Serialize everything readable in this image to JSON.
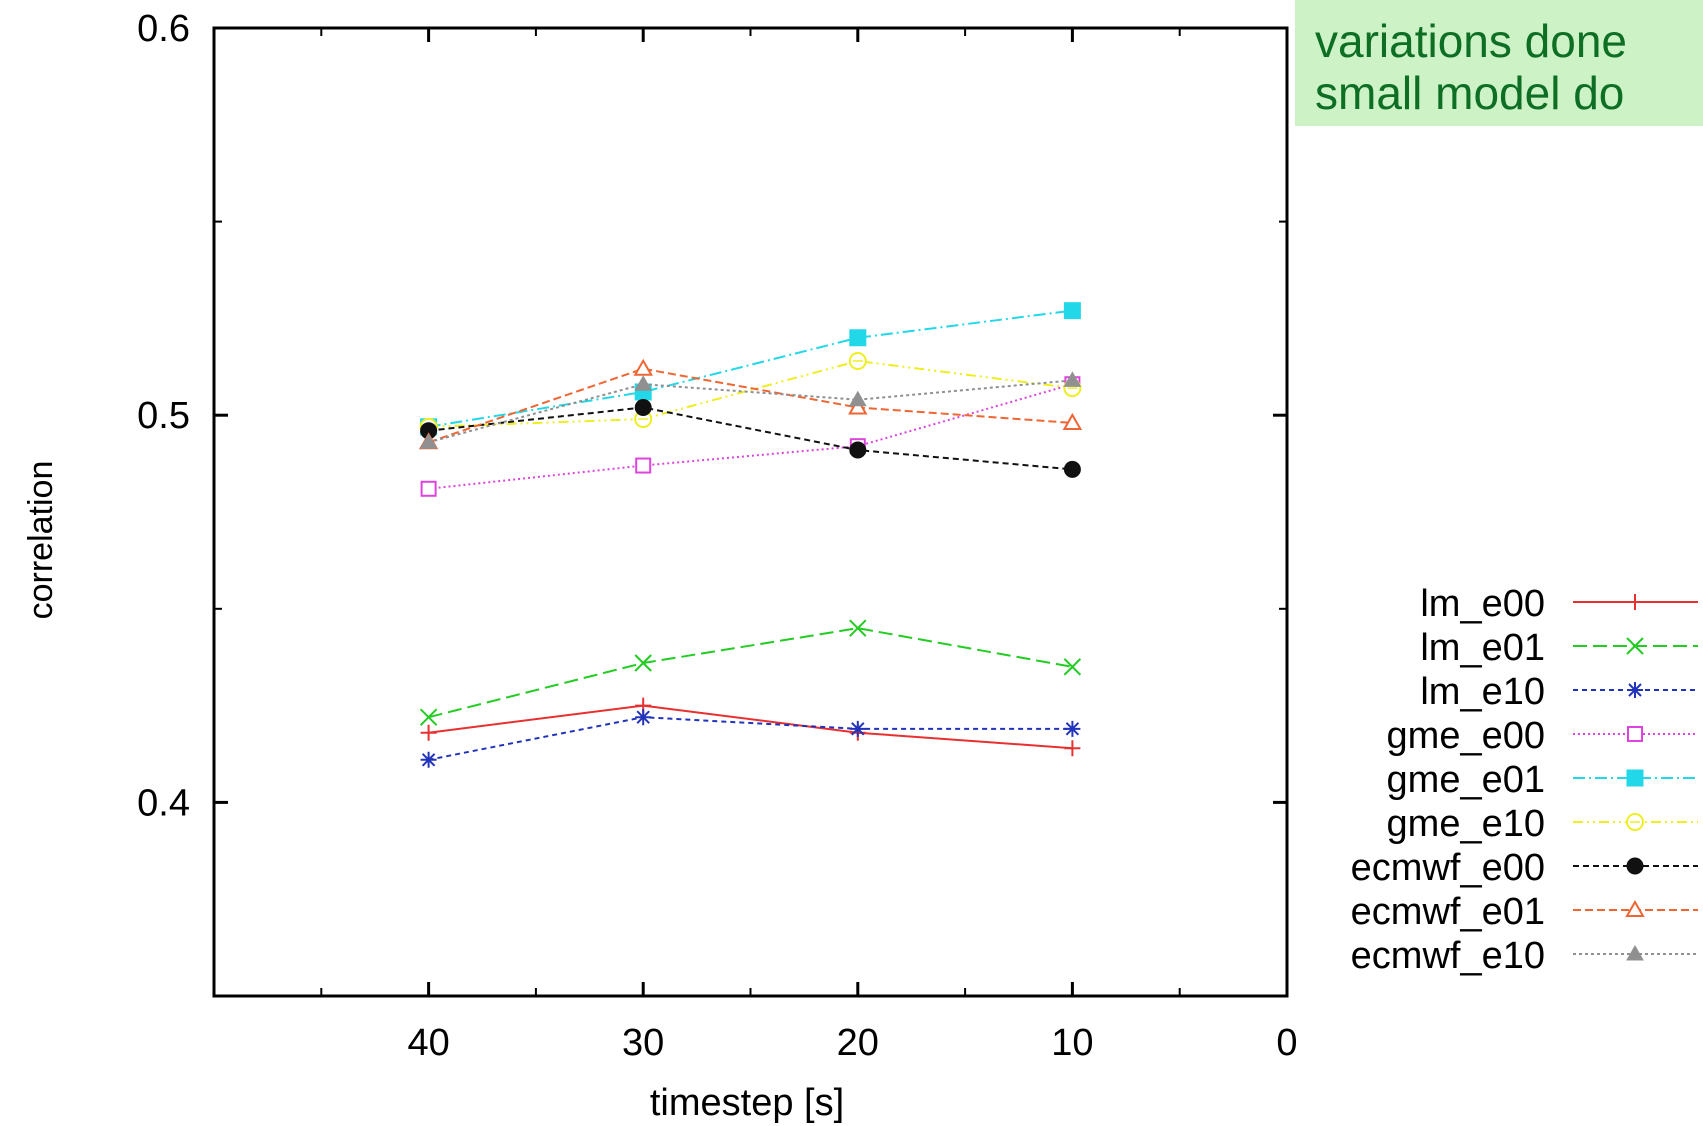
{
  "note": {
    "line1": "variations done",
    "line2": "small model do"
  },
  "chart_data": {
    "type": "line",
    "xlabel": "timestep [s]",
    "ylabel": "correlation",
    "xlim": [
      50,
      0
    ],
    "ylim": [
      0.35,
      0.6
    ],
    "x_reversed": true,
    "xticks": [
      40,
      30,
      20,
      10,
      0
    ],
    "xtick_labels": [
      "40",
      "30",
      "20",
      "10",
      "0"
    ],
    "yticks": [
      0.4,
      0.5,
      0.6
    ],
    "ytick_labels": [
      "0.4",
      "0.5",
      "0.6"
    ],
    "legend_position": "right",
    "x": [
      40,
      30,
      20,
      10
    ],
    "series": [
      {
        "name": "lm_e00",
        "values": [
          0.418,
          0.425,
          0.418,
          0.414
        ],
        "color": "#e83030",
        "marker": "plus",
        "dash": "none"
      },
      {
        "name": "lm_e01",
        "values": [
          0.422,
          0.436,
          0.445,
          0.435
        ],
        "color": "#22cc22",
        "marker": "cross",
        "dash": "14,6"
      },
      {
        "name": "lm_e10",
        "values": [
          0.411,
          0.422,
          0.419,
          0.419
        ],
        "color": "#2233bb",
        "marker": "star",
        "dash": "5,4"
      },
      {
        "name": "gme_e00",
        "values": [
          0.481,
          0.487,
          0.492,
          0.508
        ],
        "color": "#dd44dd",
        "marker": "square-open",
        "dash": "2,3"
      },
      {
        "name": "gme_e01",
        "values": [
          0.497,
          0.506,
          0.52,
          0.527
        ],
        "color": "#22d8e8",
        "marker": "square-filled",
        "dash": "12,4,2,4"
      },
      {
        "name": "gme_e10",
        "values": [
          0.497,
          0.499,
          0.514,
          0.507
        ],
        "color": "#eeee22",
        "marker": "circle-open",
        "dash": "10,4,2,4,2,4"
      },
      {
        "name": "ecmwf_e00",
        "values": [
          0.496,
          0.502,
          0.491,
          0.486
        ],
        "color": "#111111",
        "marker": "circle-filled",
        "dash": "6,4"
      },
      {
        "name": "ecmwf_e01",
        "values": [
          0.493,
          0.512,
          0.502,
          0.498
        ],
        "color": "#ee6633",
        "marker": "triangle-open",
        "dash": "8,4"
      },
      {
        "name": "ecmwf_e10",
        "values": [
          0.493,
          0.508,
          0.504,
          0.509
        ],
        "color": "#909090",
        "marker": "triangle-filled",
        "dash": "3,3"
      }
    ]
  }
}
